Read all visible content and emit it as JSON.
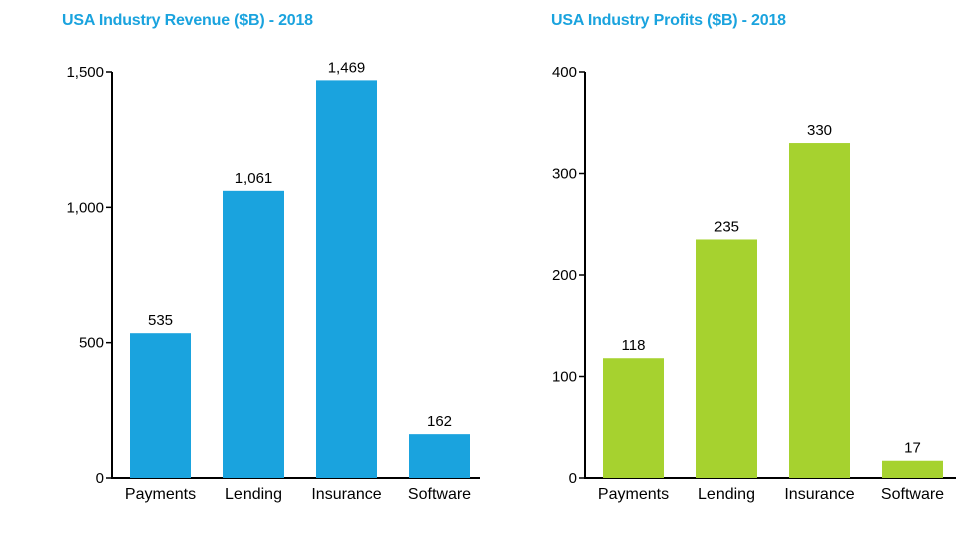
{
  "chart_data": [
    {
      "type": "bar",
      "title": "USA Industry Revenue ($B) - 2018",
      "categories": [
        "Payments",
        "Lending",
        "Insurance",
        "Software"
      ],
      "values": [
        535,
        1061,
        1469,
        162
      ],
      "value_labels": [
        "535",
        "1,061",
        "1,469",
        "162"
      ],
      "yticks": [
        0,
        500,
        1000,
        1500
      ],
      "ytick_labels": [
        "0",
        "500",
        "1,000",
        "1,500"
      ],
      "ylim": [
        0,
        1500
      ],
      "xlabel": "",
      "ylabel": "",
      "grid": false,
      "color": "#1aa3de"
    },
    {
      "type": "bar",
      "title": "USA Industry Profits ($B) - 2018",
      "categories": [
        "Payments",
        "Lending",
        "Insurance",
        "Software"
      ],
      "values": [
        118,
        235,
        330,
        17
      ],
      "value_labels": [
        "118",
        "235",
        "330",
        "17"
      ],
      "yticks": [
        0,
        100,
        200,
        300,
        400
      ],
      "ytick_labels": [
        "0",
        "100",
        "200",
        "300",
        "400"
      ],
      "ylim": [
        0,
        400
      ],
      "xlabel": "",
      "ylabel": "",
      "grid": false,
      "color": "#a6d22f"
    }
  ],
  "title_color": "#1aa3de"
}
